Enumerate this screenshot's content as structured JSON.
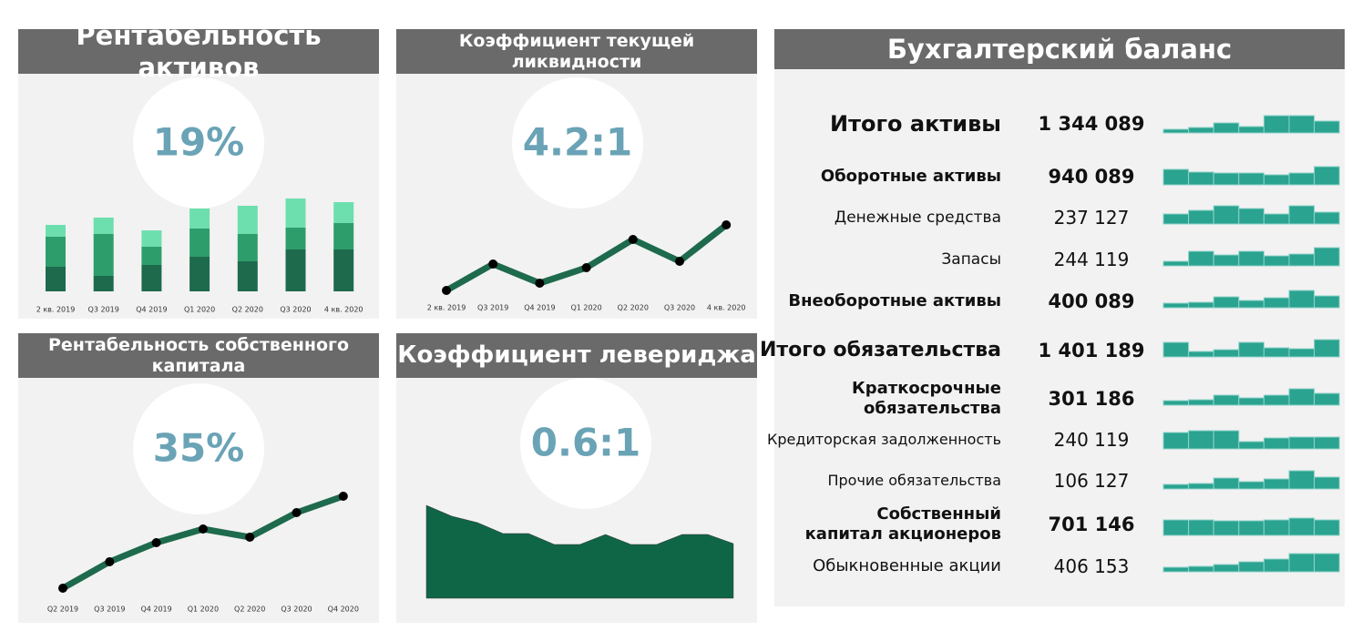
{
  "chart_data": [
    {
      "type": "stacked-bar",
      "title": "Рентабельность активов",
      "kpi": "19%",
      "categories": [
        "2 кв. 2019",
        "Q3 2019",
        "Q4 2019",
        "Q1 2020",
        "Q2 2020",
        "Q3 2020",
        "4 кв. 2020"
      ],
      "series": [
        {
          "color": "#1e6a4d",
          "values": [
            27,
            17,
            29,
            38,
            33,
            46,
            46
          ]
        },
        {
          "color": "#2e9d6c",
          "values": [
            33,
            46,
            20,
            31,
            30,
            24,
            29
          ]
        },
        {
          "color": "#6ddfae",
          "values": [
            13,
            18,
            18,
            22,
            31,
            32,
            23
          ]
        }
      ],
      "ylim": [
        0,
        110
      ]
    },
    {
      "type": "line",
      "title": "Коэффициент текущей ликвидности",
      "kpi": "4.2:1",
      "categories": [
        "2 кв. 2019",
        "Q3 2019",
        "Q4 2019",
        "Q1 2020",
        "Q2 2020",
        "Q3 2020",
        "4 кв. 2020"
      ],
      "values": [
        11,
        40,
        19,
        36,
        67,
        43,
        83
      ],
      "color": "#1e6a4d",
      "ylim": [
        0,
        100
      ]
    },
    {
      "type": "line",
      "title": "Рентабельность собственного капитала",
      "kpi": "35%",
      "categories": [
        "Q2 2019",
        "Q3 2019",
        "Q4 2019",
        "Q1 2020",
        "Q2 2020",
        "Q3 2020",
        "Q4 2020"
      ],
      "values": [
        14,
        43,
        64,
        79,
        70,
        97,
        115
      ],
      "color": "#1e6a4d",
      "ylim": [
        0,
        130
      ]
    },
    {
      "type": "area",
      "title": "Коэффициент левериджа",
      "kpi": "0.6:1",
      "values": [
        102,
        90,
        83,
        71,
        71,
        59,
        59,
        70,
        59,
        59,
        70,
        70,
        60
      ],
      "color": "#0f6646",
      "ylim": [
        0,
        120
      ]
    }
  ],
  "balance": {
    "title": "Бухгалтерский баланс",
    "spark_color": "#2aa390",
    "rows": [
      {
        "label": "Итого активы",
        "value": "1 344 089",
        "trend": [
          4,
          6,
          11,
          7,
          19,
          19,
          13
        ]
      },
      {
        "label": "Оборотные активы",
        "value": "940 089",
        "trend": [
          17,
          14,
          13,
          13,
          11,
          13,
          20
        ]
      },
      {
        "label": "Денежные средства",
        "value": "237 127",
        "trend": [
          11,
          15,
          20,
          17,
          11,
          20,
          13
        ]
      },
      {
        "label": "Запасы",
        "value": "244 119",
        "trend": [
          5,
          16,
          12,
          16,
          11,
          13,
          20
        ]
      },
      {
        "label": "Внеоборотные активы",
        "value": "400 089",
        "trend": [
          5,
          6,
          12,
          8,
          11,
          19,
          13
        ]
      },
      {
        "label": "Итого обязательства",
        "value": "1 401 189",
        "trend": [
          16,
          6,
          8,
          16,
          10,
          9,
          19
        ]
      },
      {
        "label": "Краткосрочные обязательства",
        "value": "301 186",
        "trend": [
          5,
          6,
          11,
          8,
          11,
          18,
          13
        ]
      },
      {
        "label": "Кредиторская задолженность",
        "value": "240 119",
        "trend": [
          18,
          20,
          20,
          8,
          12,
          13,
          13
        ]
      },
      {
        "label": "Прочие обязательства",
        "value": "106 127",
        "trend": [
          5,
          6,
          12,
          8,
          11,
          20,
          13
        ]
      },
      {
        "label": "Собственный капитал акционеров",
        "value": "701 146",
        "trend": [
          17,
          17,
          16,
          16,
          17,
          19,
          17
        ]
      },
      {
        "label": "Обыкновенные акции",
        "value": "406 153",
        "trend": [
          5,
          6,
          8,
          11,
          14,
          20,
          20
        ]
      }
    ]
  }
}
